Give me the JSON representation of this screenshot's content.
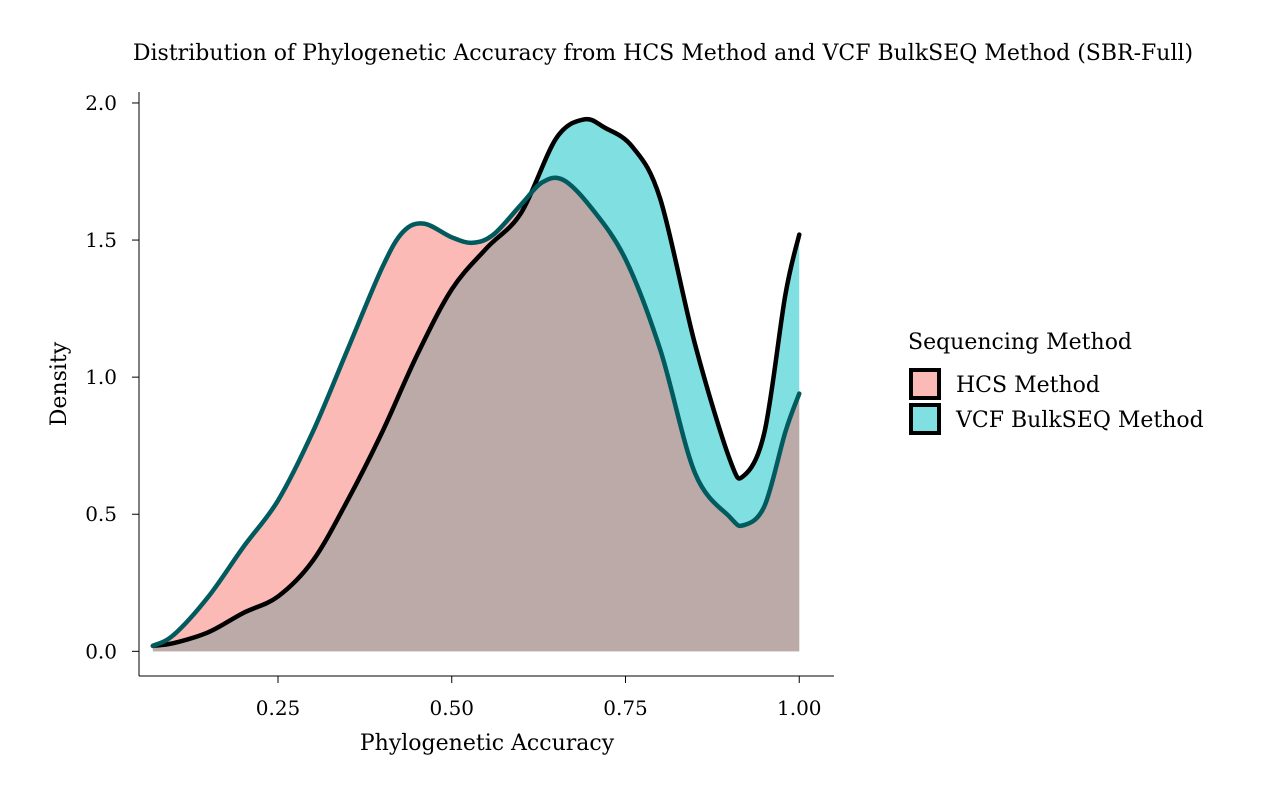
{
  "chart_data": {
    "type": "area",
    "title": "Distribution of Phylogenetic Accuracy from HCS Method and VCF BulkSEQ Method (SBR-Full)",
    "xlabel": "Phylogenetic Accuracy",
    "ylabel": "Density",
    "xlim": [
      0.05,
      1.05
    ],
    "ylim": [
      -0.09,
      2.04
    ],
    "x_ticks": [
      0.25,
      0.5,
      0.75,
      1.0
    ],
    "x_tick_labels": [
      "0.25",
      "0.50",
      "0.75",
      "1.00"
    ],
    "y_ticks": [
      0.0,
      0.5,
      1.0,
      1.5,
      2.0
    ],
    "y_tick_labels": [
      "0.0",
      "0.5",
      "1.0",
      "1.5",
      "2.0"
    ],
    "grid": false,
    "stacked": false,
    "legend": {
      "title": "Sequencing Method",
      "position": "right"
    },
    "series": [
      {
        "name": "HCS Method",
        "color": "#F8766D",
        "x": [
          0.07,
          0.1,
          0.15,
          0.2,
          0.25,
          0.3,
          0.35,
          0.4,
          0.43,
          0.46,
          0.5,
          0.53,
          0.56,
          0.6,
          0.63,
          0.66,
          0.7,
          0.75,
          0.8,
          0.85,
          0.9,
          0.92,
          0.95,
          0.98,
          1.0
        ],
        "y": [
          0.02,
          0.06,
          0.2,
          0.38,
          0.55,
          0.8,
          1.1,
          1.4,
          1.53,
          1.56,
          1.51,
          1.49,
          1.52,
          1.63,
          1.71,
          1.72,
          1.62,
          1.43,
          1.1,
          0.65,
          0.49,
          0.46,
          0.53,
          0.8,
          0.94
        ]
      },
      {
        "name": "VCF BulkSEQ Method",
        "color": "#00BFC4",
        "x": [
          0.07,
          0.1,
          0.15,
          0.2,
          0.25,
          0.3,
          0.35,
          0.4,
          0.45,
          0.5,
          0.55,
          0.6,
          0.65,
          0.69,
          0.72,
          0.76,
          0.8,
          0.85,
          0.9,
          0.92,
          0.95,
          0.98,
          1.0
        ],
        "y": [
          0.02,
          0.03,
          0.07,
          0.14,
          0.2,
          0.33,
          0.55,
          0.8,
          1.08,
          1.32,
          1.47,
          1.6,
          1.87,
          1.94,
          1.91,
          1.84,
          1.65,
          1.12,
          0.7,
          0.64,
          0.8,
          1.3,
          1.52
        ]
      }
    ]
  }
}
